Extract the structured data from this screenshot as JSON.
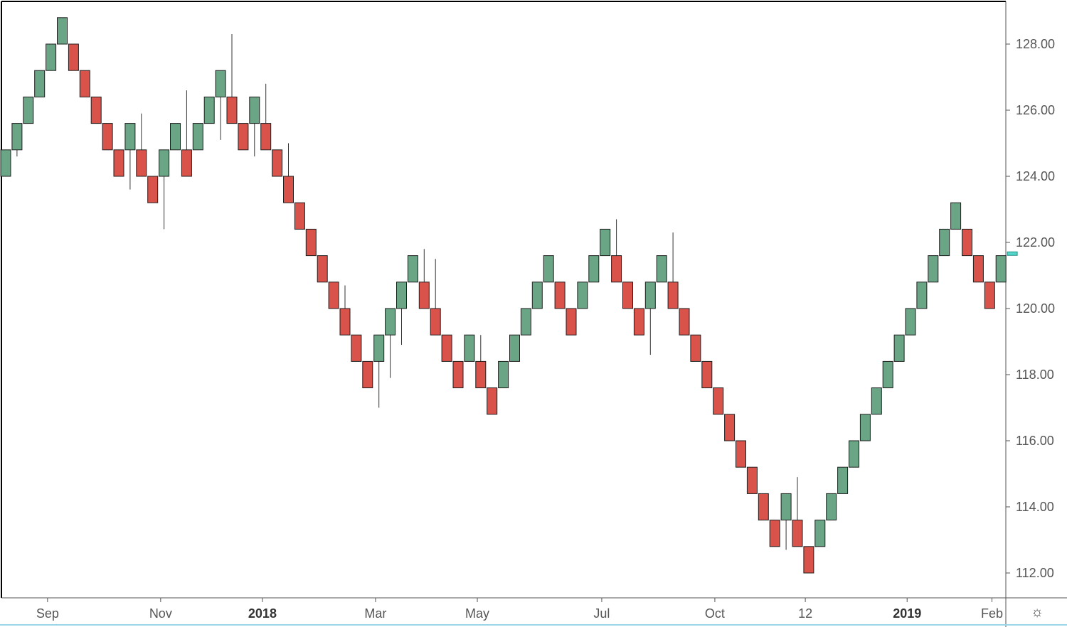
{
  "chart_data": {
    "type": "renko",
    "brick_size": 0.8,
    "y_axis": {
      "min": 111.2,
      "max": 129.5,
      "ticks": [
        112,
        114,
        116,
        118,
        120,
        122,
        124,
        126,
        128
      ],
      "label_decimals": 2,
      "position": "right"
    },
    "x_axis": {
      "tick_labels": [
        {
          "label": "Sep",
          "bold": false,
          "at_brick": 3.7
        },
        {
          "label": "Nov",
          "bold": false,
          "at_brick": 13.7
        },
        {
          "label": "2018",
          "bold": true,
          "at_brick": 22.7
        },
        {
          "label": "Mar",
          "bold": false,
          "at_brick": 32.7
        },
        {
          "label": "May",
          "bold": false,
          "at_brick": 41.7
        },
        {
          "label": "Jul",
          "bold": false,
          "at_brick": 52.7
        },
        {
          "label": "Oct",
          "bold": false,
          "at_brick": 62.7
        },
        {
          "label": "12",
          "bold": false,
          "at_brick": 70.7
        },
        {
          "label": "2019",
          "bold": true,
          "at_brick": 79.7
        },
        {
          "label": "Feb",
          "bold": false,
          "at_brick": 87.2
        }
      ]
    },
    "colors": {
      "up": "#6aa586",
      "down": "#d9534a",
      "border": "#1e1e1e",
      "wick": "#333333",
      "current": "#4fd8c9"
    },
    "grid": false,
    "bricks": [
      {
        "d": "up",
        "open": 124.0,
        "close": 124.8
      },
      {
        "d": "up",
        "open": 124.8,
        "close": 125.6,
        "wick_low": 124.6
      },
      {
        "d": "up",
        "open": 125.6,
        "close": 126.4
      },
      {
        "d": "up",
        "open": 126.4,
        "close": 127.2
      },
      {
        "d": "up",
        "open": 127.2,
        "close": 128.0
      },
      {
        "d": "up",
        "open": 128.0,
        "close": 128.8
      },
      {
        "d": "down",
        "open": 128.0,
        "close": 127.2
      },
      {
        "d": "down",
        "open": 127.2,
        "close": 126.4
      },
      {
        "d": "down",
        "open": 126.4,
        "close": 125.6
      },
      {
        "d": "down",
        "open": 125.6,
        "close": 124.8
      },
      {
        "d": "down",
        "open": 124.8,
        "close": 124.0
      },
      {
        "d": "up",
        "open": 124.8,
        "close": 125.6,
        "wick_low": 123.6
      },
      {
        "d": "down",
        "open": 124.8,
        "close": 124.0,
        "wick_high": 125.9
      },
      {
        "d": "down",
        "open": 124.0,
        "close": 123.2
      },
      {
        "d": "up",
        "open": 124.0,
        "close": 124.8,
        "wick_low": 122.4
      },
      {
        "d": "up",
        "open": 124.8,
        "close": 125.6
      },
      {
        "d": "down",
        "open": 124.8,
        "close": 124.0,
        "wick_high": 126.6
      },
      {
        "d": "up",
        "open": 124.8,
        "close": 125.6
      },
      {
        "d": "up",
        "open": 125.6,
        "close": 126.4
      },
      {
        "d": "up",
        "open": 126.4,
        "close": 127.2,
        "wick_low": 125.1
      },
      {
        "d": "down",
        "open": 126.4,
        "close": 125.6,
        "wick_high": 128.3
      },
      {
        "d": "down",
        "open": 125.6,
        "close": 124.8
      },
      {
        "d": "up",
        "open": 125.6,
        "close": 126.4,
        "wick_low": 124.6
      },
      {
        "d": "down",
        "open": 125.6,
        "close": 124.8,
        "wick_high": 126.8
      },
      {
        "d": "down",
        "open": 124.8,
        "close": 124.0
      },
      {
        "d": "down",
        "open": 124.0,
        "close": 123.2,
        "wick_high": 125.0
      },
      {
        "d": "down",
        "open": 123.2,
        "close": 122.4
      },
      {
        "d": "down",
        "open": 122.4,
        "close": 121.6
      },
      {
        "d": "down",
        "open": 121.6,
        "close": 120.8
      },
      {
        "d": "down",
        "open": 120.8,
        "close": 120.0
      },
      {
        "d": "down",
        "open": 120.0,
        "close": 119.2,
        "wick_high": 120.7
      },
      {
        "d": "down",
        "open": 119.2,
        "close": 118.4
      },
      {
        "d": "down",
        "open": 118.4,
        "close": 117.6
      },
      {
        "d": "up",
        "open": 118.4,
        "close": 119.2,
        "wick_low": 117.0
      },
      {
        "d": "up",
        "open": 119.2,
        "close": 120.0,
        "wick_low": 117.9
      },
      {
        "d": "up",
        "open": 120.0,
        "close": 120.8,
        "wick_low": 118.9
      },
      {
        "d": "up",
        "open": 120.8,
        "close": 121.6
      },
      {
        "d": "down",
        "open": 120.8,
        "close": 120.0,
        "wick_high": 121.8
      },
      {
        "d": "down",
        "open": 120.0,
        "close": 119.2,
        "wick_high": 121.5
      },
      {
        "d": "down",
        "open": 119.2,
        "close": 118.4
      },
      {
        "d": "down",
        "open": 118.4,
        "close": 117.6
      },
      {
        "d": "up",
        "open": 118.4,
        "close": 119.2
      },
      {
        "d": "down",
        "open": 118.4,
        "close": 117.6,
        "wick_high": 119.2
      },
      {
        "d": "down",
        "open": 117.6,
        "close": 116.8
      },
      {
        "d": "up",
        "open": 117.6,
        "close": 118.4
      },
      {
        "d": "up",
        "open": 118.4,
        "close": 119.2
      },
      {
        "d": "up",
        "open": 119.2,
        "close": 120.0
      },
      {
        "d": "up",
        "open": 120.0,
        "close": 120.8
      },
      {
        "d": "up",
        "open": 120.8,
        "close": 121.6
      },
      {
        "d": "down",
        "open": 120.8,
        "close": 120.0
      },
      {
        "d": "down",
        "open": 120.0,
        "close": 119.2
      },
      {
        "d": "up",
        "open": 120.0,
        "close": 120.8
      },
      {
        "d": "up",
        "open": 120.8,
        "close": 121.6
      },
      {
        "d": "up",
        "open": 121.6,
        "close": 122.4
      },
      {
        "d": "down",
        "open": 121.6,
        "close": 120.8,
        "wick_high": 122.7
      },
      {
        "d": "down",
        "open": 120.8,
        "close": 120.0
      },
      {
        "d": "down",
        "open": 120.0,
        "close": 119.2
      },
      {
        "d": "up",
        "open": 120.0,
        "close": 120.8,
        "wick_low": 118.6
      },
      {
        "d": "up",
        "open": 120.8,
        "close": 121.6
      },
      {
        "d": "down",
        "open": 120.8,
        "close": 120.0,
        "wick_high": 122.3
      },
      {
        "d": "down",
        "open": 120.0,
        "close": 119.2
      },
      {
        "d": "down",
        "open": 119.2,
        "close": 118.4
      },
      {
        "d": "down",
        "open": 118.4,
        "close": 117.6
      },
      {
        "d": "down",
        "open": 117.6,
        "close": 116.8
      },
      {
        "d": "down",
        "open": 116.8,
        "close": 116.0
      },
      {
        "d": "down",
        "open": 116.0,
        "close": 115.2
      },
      {
        "d": "down",
        "open": 115.2,
        "close": 114.4
      },
      {
        "d": "down",
        "open": 114.4,
        "close": 113.6
      },
      {
        "d": "down",
        "open": 113.6,
        "close": 112.8
      },
      {
        "d": "up",
        "open": 113.6,
        "close": 114.4,
        "wick_low": 112.7
      },
      {
        "d": "down",
        "open": 113.6,
        "close": 112.8,
        "wick_high": 114.9
      },
      {
        "d": "down",
        "open": 112.8,
        "close": 112.0
      },
      {
        "d": "up",
        "open": 112.8,
        "close": 113.6
      },
      {
        "d": "up",
        "open": 113.6,
        "close": 114.4
      },
      {
        "d": "up",
        "open": 114.4,
        "close": 115.2
      },
      {
        "d": "up",
        "open": 115.2,
        "close": 116.0
      },
      {
        "d": "up",
        "open": 116.0,
        "close": 116.8
      },
      {
        "d": "up",
        "open": 116.8,
        "close": 117.6
      },
      {
        "d": "up",
        "open": 117.6,
        "close": 118.4
      },
      {
        "d": "up",
        "open": 118.4,
        "close": 119.2
      },
      {
        "d": "up",
        "open": 119.2,
        "close": 120.0
      },
      {
        "d": "up",
        "open": 120.0,
        "close": 120.8
      },
      {
        "d": "up",
        "open": 120.8,
        "close": 121.6
      },
      {
        "d": "up",
        "open": 121.6,
        "close": 122.4
      },
      {
        "d": "up",
        "open": 122.4,
        "close": 123.2
      },
      {
        "d": "down",
        "open": 122.4,
        "close": 121.6
      },
      {
        "d": "down",
        "open": 121.6,
        "close": 120.8
      },
      {
        "d": "down",
        "open": 120.8,
        "close": 120.0
      },
      {
        "d": "up",
        "open": 120.8,
        "close": 121.6
      }
    ],
    "current_price": 121.65
  },
  "settings_icon": "gear-icon"
}
